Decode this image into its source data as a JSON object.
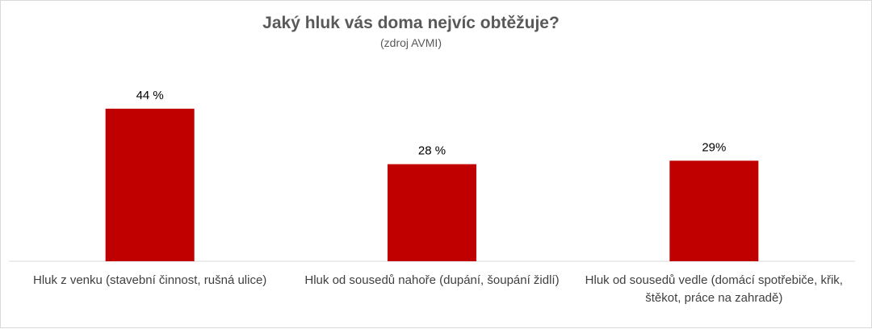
{
  "chart_data": {
    "type": "bar",
    "title": "Jaký hluk vás doma nejvíc obtěžuje?",
    "subtitle": "(zdroj AVMI)",
    "categories": [
      "Hluk z venku (stavební činnost, rušná ulice)",
      "Hluk od sousedů nahoře (dupání, šoupání židlí)",
      "Hluk od sousedů vedle (domácí spotřebiče, křik, štěkot, práce na zahradě)"
    ],
    "values": [
      44,
      28,
      29
    ],
    "data_labels": [
      "44 %",
      "28 %",
      "29%"
    ],
    "ylim": [
      0,
      50
    ],
    "grid": false,
    "legend": "none",
    "bar_color": "#C00000",
    "axis_color": "#d9d9d9"
  }
}
